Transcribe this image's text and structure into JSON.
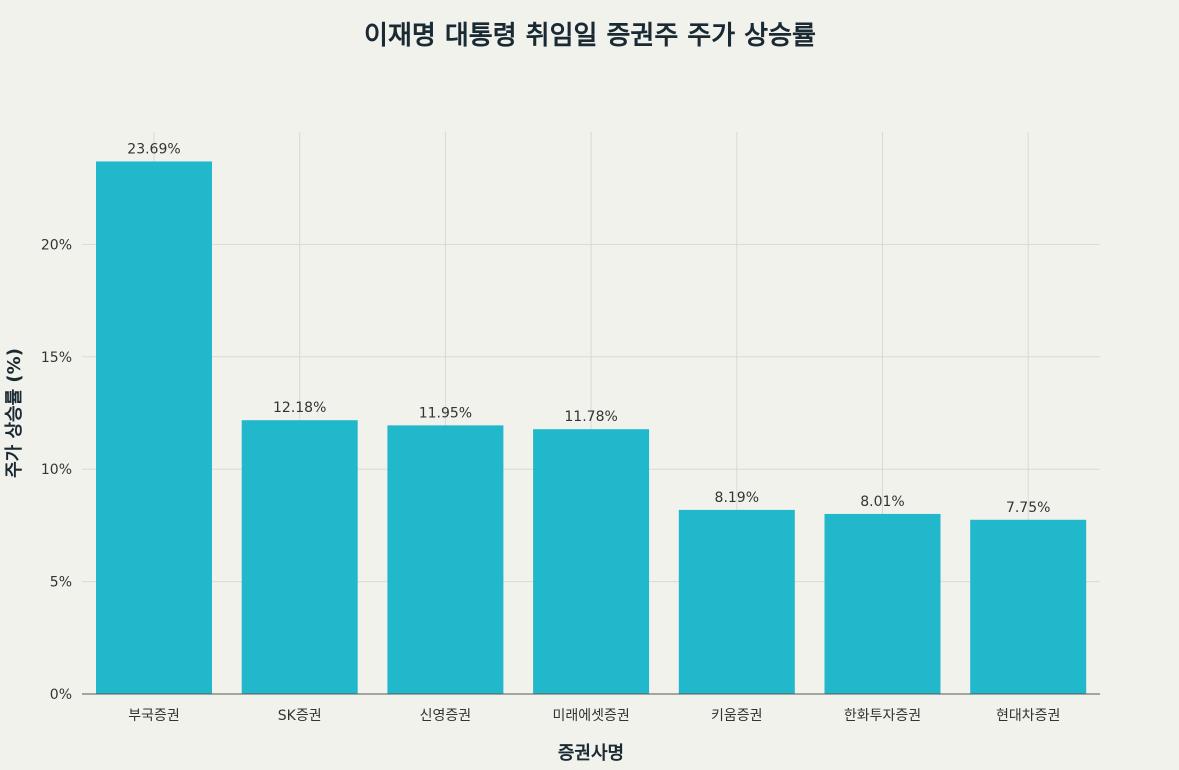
{
  "chart_data": {
    "type": "bar",
    "title": "이재명 대통령 취임일 증권주 주가 상승률",
    "xlabel": "증권사명",
    "ylabel": "주가 상승률 (%)",
    "categories": [
      "부국증권",
      "SK증권",
      "신영증권",
      "미래에셋증권",
      "키움증권",
      "한화투자증권",
      "현대차증권"
    ],
    "values": [
      23.69,
      12.18,
      11.95,
      11.78,
      8.19,
      8.01,
      7.75
    ],
    "value_labels": [
      "23.69%",
      "12.18%",
      "11.95%",
      "11.78%",
      "8.19%",
      "8.01%",
      "7.75%"
    ],
    "yticks": [
      0,
      5,
      10,
      15,
      20
    ],
    "ytick_labels": [
      "0%",
      "5%",
      "10%",
      "15%",
      "20%"
    ],
    "ylim": [
      0,
      25
    ],
    "grid": true,
    "legend": "none",
    "colors": {
      "bar": "#21b8cc",
      "background": "#f2f2ed",
      "grid": "#d9d9d4",
      "title": "#1a2a33",
      "text": "#333333"
    }
  }
}
